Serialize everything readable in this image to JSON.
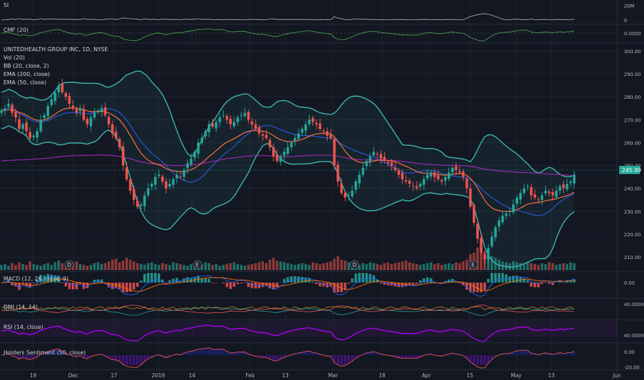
{
  "panes": {
    "si": {
      "label": "SI",
      "axis": [
        "20M",
        "0"
      ]
    },
    "cmf": {
      "label": "CMF (20)",
      "axis": [
        "0.0000"
      ]
    },
    "main": {
      "legend": [
        "UNITEDHEALTH GROUP INC, 1D, NYSE",
        "Vol (20)",
        "BB (20, close, 2)",
        "EMA (200, close)",
        "EMA (50, close)"
      ],
      "axis": [
        "300.00",
        "290.00",
        "280.00",
        "270.00",
        "260.00",
        "250.00",
        "240.00",
        "230.00",
        "220.00",
        "210.00"
      ],
      "last_price": "245.99",
      "event_markers": [
        "D",
        "E",
        "D",
        "E"
      ]
    },
    "macd": {
      "label": "MACD (12, 26, close, 9)",
      "axis": [
        "0.00"
      ]
    },
    "dmi": {
      "label": "DMI (14, 14)",
      "axis": [
        "40.0000"
      ]
    },
    "rsi": {
      "label": "RSI (14, close)",
      "axis": [
        "40.0000"
      ]
    },
    "sentiment": {
      "label": "Holders Sentiment (50, close)",
      "axis": [
        "0.00",
        "-20.00"
      ]
    }
  },
  "x_axis": [
    "19",
    "Dec",
    "17",
    "2019",
    "14",
    "Feb",
    "13",
    "Mar",
    "18",
    "Apr",
    "15",
    "May",
    "13",
    "Jun"
  ],
  "colors": {
    "background": "#131722",
    "grid": "#2a2e39",
    "up": "#26a69a",
    "down": "#ef5350",
    "bb": "#3fb8af",
    "ema200": "#9c27b0",
    "ema50": "#ff7043",
    "bb_mid": "#2962ff",
    "volume_up": "#1f6f68",
    "volume_down": "#8e3a3a",
    "macd": "#2962ff",
    "rsi": "#b400ff",
    "price_tag": "#26a69a"
  },
  "chart_data": {
    "type": "candlestick",
    "title": "UNITEDHEALTH GROUP INC, 1D, NYSE",
    "ylim": [
      204,
      303
    ],
    "closes": [
      274,
      275,
      277,
      273,
      271,
      266,
      268,
      265,
      262,
      263,
      265,
      270,
      272,
      276,
      279,
      282,
      285,
      282,
      280,
      277,
      275,
      273,
      275,
      270,
      268,
      271,
      273,
      274,
      275,
      272,
      268,
      264,
      262,
      258,
      250,
      244,
      239,
      235,
      232,
      233,
      237,
      240,
      242,
      245,
      246,
      243,
      240,
      242,
      244,
      246,
      245,
      248,
      251,
      253,
      256,
      260,
      262,
      265,
      268,
      267,
      269,
      271,
      272,
      270,
      268,
      269,
      271,
      272,
      273,
      270,
      268,
      266,
      264,
      263,
      262,
      258,
      254,
      252,
      254,
      256,
      258,
      260,
      262,
      264,
      266,
      268,
      270,
      269,
      268,
      266,
      265,
      263,
      262,
      250,
      243,
      238,
      236,
      237,
      239,
      243,
      246,
      249,
      252,
      254,
      256,
      255,
      253,
      252,
      251,
      250,
      248,
      246,
      244,
      243,
      242,
      241,
      240,
      242,
      244,
      246,
      247,
      245,
      244,
      243,
      245,
      247,
      249,
      248,
      247,
      245,
      240,
      232,
      225,
      218,
      212,
      209,
      214,
      219,
      223,
      226,
      228,
      229,
      230,
      233,
      236,
      238,
      240,
      241,
      237,
      236,
      235,
      237,
      239,
      238,
      237,
      239,
      241,
      240,
      242,
      243,
      245.99
    ],
    "volumes": [
      6,
      7,
      5,
      8,
      6,
      9,
      7,
      6,
      10,
      7,
      6,
      5,
      7,
      8,
      6,
      9,
      11,
      8,
      7,
      6,
      9,
      10,
      7,
      6,
      5,
      6,
      8,
      9,
      7,
      8,
      10,
      12,
      13,
      9,
      11,
      14,
      12,
      10,
      8,
      7,
      6,
      8,
      9,
      7,
      6,
      8,
      7,
      6,
      9,
      8,
      7,
      6,
      5,
      7,
      8,
      6,
      7,
      9,
      8,
      6,
      7,
      5,
      6,
      7,
      8,
      9,
      7,
      6,
      5,
      6,
      7,
      8,
      9,
      10,
      8,
      12,
      14,
      11,
      10,
      9,
      8,
      7,
      6,
      7,
      8,
      7,
      6,
      9,
      8,
      7,
      8,
      9,
      10,
      13,
      16,
      12,
      11,
      9,
      8,
      7,
      6,
      8,
      7,
      9,
      8,
      7,
      6,
      8,
      9,
      7,
      8,
      9,
      10,
      11,
      9,
      8,
      7,
      6,
      7,
      8,
      9,
      7,
      8,
      6,
      7,
      8,
      7,
      9,
      8,
      10,
      12,
      18,
      20,
      26,
      30,
      22,
      18,
      16,
      14,
      12,
      10,
      9,
      8,
      10,
      9,
      8,
      7,
      9,
      8,
      7,
      6,
      8,
      7,
      9,
      8,
      6,
      7,
      8,
      7,
      9,
      8
    ],
    "ema200": [
      252,
      252.1,
      252.2,
      252.3,
      252.4,
      252.5,
      252.5,
      252.6,
      252.7,
      252.8,
      252.9,
      253,
      253.1,
      253.2,
      253.4,
      253.6,
      253.8,
      254,
      254.1,
      254.2,
      254.3,
      254.3,
      254.4,
      254.4,
      254.4,
      254.5,
      254.5,
      254.6,
      254.6,
      254.6,
      254.5,
      254.4,
      254.2,
      254,
      253.7,
      253.3,
      252.9,
      252.5,
      252,
      251.6,
      251.3,
      251,
      250.8,
      250.6,
      250.5,
      250.4,
      250.2,
      250.1,
      250,
      250,
      250,
      250.1,
      250.2,
      250.3,
      250.5,
      250.7,
      250.9,
      251.2,
      251.5,
      251.8,
      252.1,
      252.4,
      252.7,
      253,
      253.2,
      253.4,
      253.6,
      253.8,
      254,
      254.1,
      254.2,
      254.3,
      254.3,
      254.3,
      254.3,
      254.2,
      254.1,
      254,
      253.9,
      253.9,
      253.9,
      253.9,
      254,
      254.1,
      254.2,
      254.3,
      254.4,
      254.5,
      254.5,
      254.5,
      254.5,
      254.5,
      254.4,
      254.2,
      254,
      253.7,
      253.4,
      253.1,
      252.9,
      252.7,
      252.6,
      252.5,
      252.5,
      252.5,
      252.5,
      252.5,
      252.5,
      252.4,
      252.3,
      252.2,
      252.1,
      252,
      251.8,
      251.6,
      251.4,
      251.2,
      251,
      250.8,
      250.7,
      250.6,
      250.5,
      250.4,
      250.3,
      250.2,
      250.1,
      250.1,
      250.1,
      250.1,
      250,
      249.9,
      249.8,
      249.6,
      249.4,
      249.1,
      248.8,
      248.5,
      248.2,
      248,
      247.8,
      247.6,
      247.5,
      247.4,
      247.3,
      247.2,
      247.1,
      247,
      247,
      246.9,
      246.8,
      246.7,
      246.6,
      246.5,
      246.4,
      246.3,
      246.2,
      246.1,
      246,
      245.9,
      245.8,
      245.7,
      245.6
    ]
  }
}
